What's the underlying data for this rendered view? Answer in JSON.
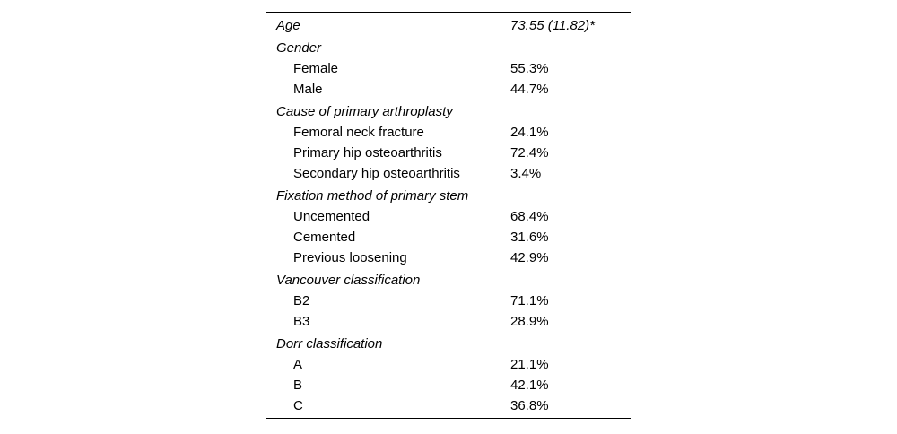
{
  "table": {
    "rows": [
      {
        "type": "header",
        "label": "Age",
        "value": "73.55 (11.82)*"
      },
      {
        "type": "header",
        "label": "Gender",
        "value": ""
      },
      {
        "type": "item",
        "label": "Female",
        "value": "55.3%"
      },
      {
        "type": "item",
        "label": "Male",
        "value": "44.7%"
      },
      {
        "type": "header",
        "label": "Cause of primary arthroplasty",
        "value": ""
      },
      {
        "type": "item",
        "label": "Femoral neck fracture",
        "value": "24.1%"
      },
      {
        "type": "item",
        "label": "Primary hip osteoarthritis",
        "value": "72.4%"
      },
      {
        "type": "item",
        "label": "Secondary hip osteoarthritis",
        "value": "3.4%"
      },
      {
        "type": "header",
        "label": "Fixation method of primary stem",
        "value": ""
      },
      {
        "type": "item",
        "label": "Uncemented",
        "value": "68.4%"
      },
      {
        "type": "item",
        "label": "Cemented",
        "value": "31.6%"
      },
      {
        "type": "item",
        "label": "Previous loosening",
        "value": "42.9%"
      },
      {
        "type": "header",
        "label": "Vancouver classification",
        "value": ""
      },
      {
        "type": "item",
        "label": "B2",
        "value": "71.1%"
      },
      {
        "type": "item",
        "label": "B3",
        "value": "28.9%"
      },
      {
        "type": "header",
        "label": "Dorr classification",
        "value": ""
      },
      {
        "type": "item",
        "label": "A",
        "value": "21.1%"
      },
      {
        "type": "item",
        "label": "B",
        "value": "42.1%"
      },
      {
        "type": "item",
        "label": "C",
        "value": "36.8%"
      }
    ],
    "colors": {
      "text": "#000000",
      "rule": "#000000",
      "background": "#ffffff"
    }
  }
}
